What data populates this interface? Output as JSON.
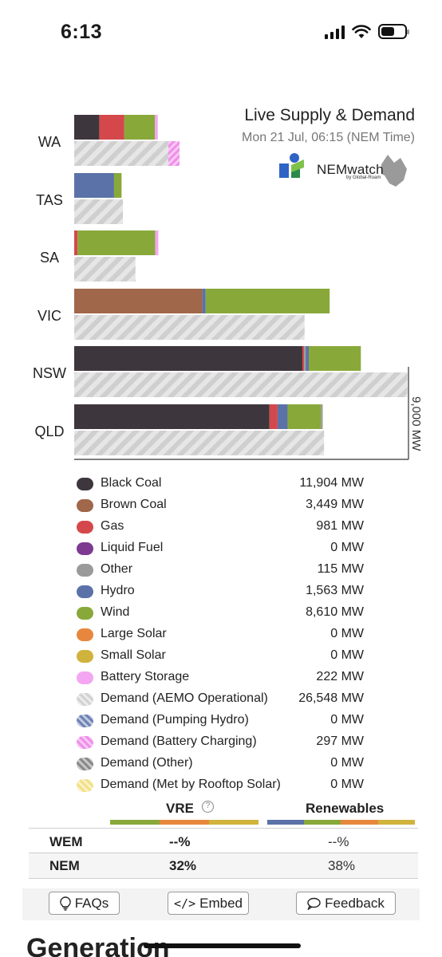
{
  "status_bar": {
    "time": "6:13"
  },
  "header": {
    "title": "Live Supply & Demand",
    "subtitle": "Mon 21 Jul, 06:15 (NEM Time)",
    "logo_text": "NEMwatch",
    "logo_subtext": "by Global-Roam"
  },
  "colors": {
    "black_coal": "#3d363d",
    "brown_coal": "#a0674a",
    "gas": "#d4484b",
    "liquid_fuel": "#7d3a91",
    "other": "#9a9a9a",
    "hydro": "#5b72a8",
    "wind": "#88a93a",
    "large_solar": "#e7873d",
    "small_solar": "#d0b33c",
    "battery": "#f4a6f2",
    "demand": "#d8d8d8"
  },
  "chart_data": {
    "type": "bar",
    "orientation": "horizontal-stacked",
    "categories": [
      "WA",
      "TAS",
      "SA",
      "VIC",
      "NSW",
      "QLD"
    ],
    "axis_label": "9,000 MW",
    "xlim": [
      0,
      9000
    ],
    "supply": [
      {
        "region": "WA",
        "segments": [
          [
            "black_coal",
            900
          ],
          [
            "gas",
            900
          ],
          [
            "wind",
            1100
          ],
          [
            "battery",
            100
          ]
        ]
      },
      {
        "region": "TAS",
        "segments": [
          [
            "hydro",
            1430
          ],
          [
            "wind",
            270
          ]
        ]
      },
      {
        "region": "SA",
        "segments": [
          [
            "gas",
            120
          ],
          [
            "wind",
            2790
          ],
          [
            "battery",
            110
          ]
        ]
      },
      {
        "region": "VIC",
        "segments": [
          [
            "brown_coal",
            4600
          ],
          [
            "hydro",
            120
          ],
          [
            "wind",
            4450
          ]
        ]
      },
      {
        "region": "NSW",
        "segments": [
          [
            "black_coal",
            8190
          ],
          [
            "gas",
            60
          ],
          [
            "other",
            60
          ],
          [
            "hydro",
            110
          ],
          [
            "wind",
            1870
          ]
        ]
      },
      {
        "region": "QLD",
        "segments": [
          [
            "black_coal",
            7010
          ],
          [
            "gas",
            290
          ],
          [
            "hydro",
            360
          ],
          [
            "wind",
            1200
          ],
          [
            "other",
            60
          ]
        ]
      }
    ],
    "demand": [
      {
        "region": "WA",
        "operational": 3380,
        "battery_charging": 400
      },
      {
        "region": "TAS",
        "operational": 1750,
        "battery_charging": 0
      },
      {
        "region": "SA",
        "operational": 2200,
        "battery_charging": 0
      },
      {
        "region": "VIC",
        "operational": 8270,
        "battery_charging": 0
      },
      {
        "region": "NSW",
        "operational": 11960,
        "battery_charging": 0
      },
      {
        "region": "QLD",
        "operational": 8970,
        "battery_charging": 0
      }
    ]
  },
  "legend": [
    {
      "label": "Black Coal",
      "value": "11,904 MW",
      "swatch": "black_coal"
    },
    {
      "label": "Brown Coal",
      "value": "3,449 MW",
      "swatch": "brown_coal"
    },
    {
      "label": "Gas",
      "value": "981 MW",
      "swatch": "gas"
    },
    {
      "label": "Liquid Fuel",
      "value": "0 MW",
      "swatch": "liquid_fuel"
    },
    {
      "label": "Other",
      "value": "115 MW",
      "swatch": "other"
    },
    {
      "label": "Hydro",
      "value": "1,563 MW",
      "swatch": "hydro"
    },
    {
      "label": "Wind",
      "value": "8,610 MW",
      "swatch": "wind"
    },
    {
      "label": "Large Solar",
      "value": "0 MW",
      "swatch": "large_solar"
    },
    {
      "label": "Small Solar",
      "value": "0 MW",
      "swatch": "small_solar"
    },
    {
      "label": "Battery Storage",
      "value": "222 MW",
      "swatch": "battery"
    },
    {
      "label": "Demand (AEMO Operational)",
      "value": "26,548 MW",
      "swatch": "demand_op"
    },
    {
      "label": "Demand (Pumping Hydro)",
      "value": "0 MW",
      "swatch": "demand_hydro"
    },
    {
      "label": "Demand (Battery Charging)",
      "value": "297 MW",
      "swatch": "demand_batt"
    },
    {
      "label": "Demand (Other)",
      "value": "0 MW",
      "swatch": "demand_other"
    },
    {
      "label": "Demand (Met by Rooftop Solar)",
      "value": "0 MW",
      "swatch": "demand_rooftop"
    }
  ],
  "renewables_table": {
    "vre_header": "VRE",
    "renewables_header": "Renewables",
    "rows": [
      {
        "market": "WEM",
        "vre": "--%",
        "renewables": "--%"
      },
      {
        "market": "NEM",
        "vre": "32%",
        "renewables": "38%"
      }
    ]
  },
  "buttons": {
    "faqs": "FAQs",
    "embed": "Embed",
    "feedback": "Feedback"
  },
  "section_title": "Generation"
}
